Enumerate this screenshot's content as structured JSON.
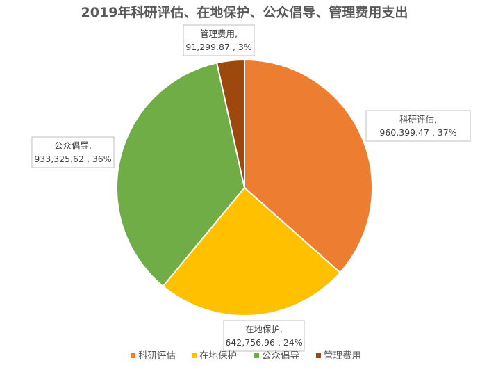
{
  "chart_data": {
    "type": "pie",
    "title": "2019年科研评估、在地保护、公众倡导、管理费用支出",
    "categories": [
      "科研评估",
      "在地保护",
      "公众倡导",
      "管理费用"
    ],
    "values": [
      960399.47,
      642756.96,
      933325.62,
      91299.87
    ],
    "value_labels": [
      "960,399.47",
      "642,756.96",
      "933,325.62",
      "91,299.87"
    ],
    "percent_labels": [
      "37%",
      "24%",
      "36%",
      "3%"
    ],
    "colors": [
      "#ED7D31",
      "#FFC000",
      "#70AD47",
      "#9E480E"
    ],
    "legend_position": "bottom",
    "start_angle_deg": 0,
    "direction": "clockwise"
  }
}
